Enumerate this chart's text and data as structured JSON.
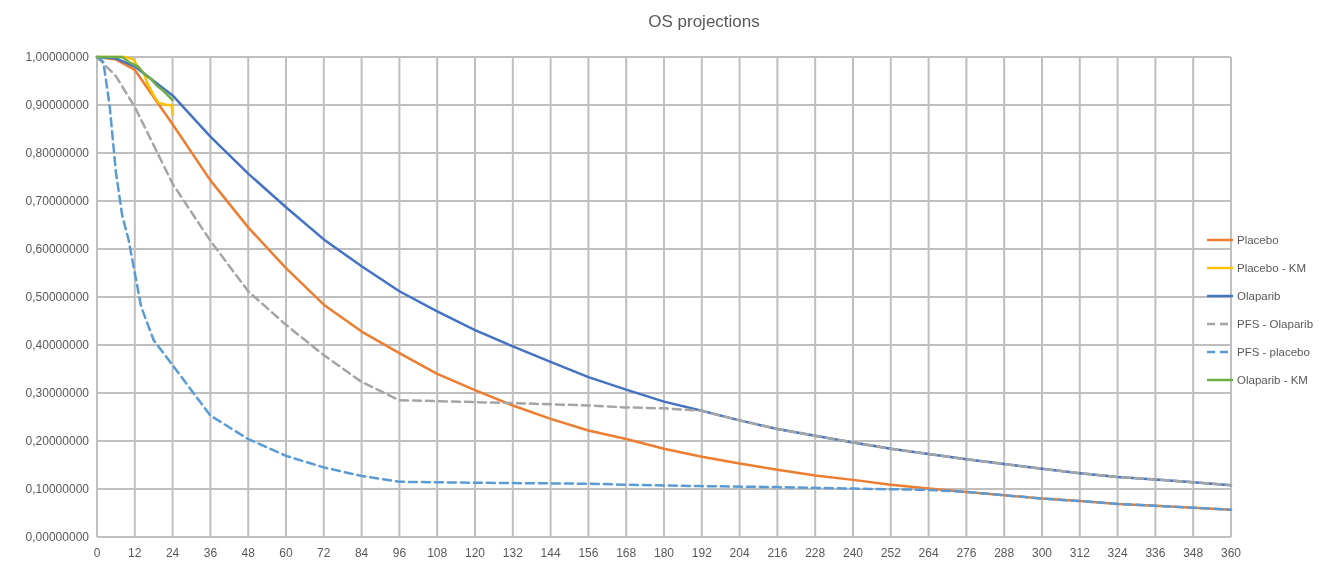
{
  "chart_data": {
    "type": "line",
    "title": "OS projections",
    "xlim": [
      0,
      360
    ],
    "xticks": [
      0,
      12,
      24,
      36,
      48,
      60,
      72,
      84,
      96,
      108,
      120,
      132,
      144,
      156,
      168,
      180,
      192,
      204,
      216,
      228,
      240,
      252,
      264,
      276,
      288,
      300,
      312,
      324,
      336,
      348,
      360
    ],
    "ylim": [
      0,
      1
    ],
    "yticks": [
      {
        "value": 0,
        "label": "0,00000000"
      },
      {
        "value": 0.1,
        "label": "0,10000000"
      },
      {
        "value": 0.2,
        "label": "0,20000000"
      },
      {
        "value": 0.3,
        "label": "0,30000000"
      },
      {
        "value": 0.4,
        "label": "0,40000000"
      },
      {
        "value": 0.5,
        "label": "0,50000000"
      },
      {
        "value": 0.6,
        "label": "0,60000000"
      },
      {
        "value": 0.7,
        "label": "0,70000000"
      },
      {
        "value": 0.8,
        "label": "0,80000000"
      },
      {
        "value": 0.9,
        "label": "0,90000000"
      },
      {
        "value": 1,
        "label": "1,00000000"
      }
    ],
    "grid": true,
    "legend": "right",
    "marker": "none",
    "series": [
      {
        "name": "Placebo",
        "color": "#ed7d31",
        "line_style": "solid",
        "x": [
          0,
          6,
          12,
          24,
          36,
          48,
          60,
          72,
          84,
          96,
          108,
          120,
          132,
          144,
          156,
          168,
          180,
          192,
          204,
          216,
          228,
          240,
          252,
          264,
          276,
          288,
          300,
          312,
          324,
          336,
          348,
          360
        ],
        "values": [
          1,
          0.995,
          0.973,
          0.86,
          0.743,
          0.645,
          0.56,
          0.484,
          0.428,
          0.383,
          0.34,
          0.306,
          0.274,
          0.246,
          0.222,
          0.204,
          0.184,
          0.167,
          0.153,
          0.14,
          0.128,
          0.119,
          0.109,
          0.101,
          0.094,
          0.087,
          0.08,
          0.075,
          0.069,
          0.065,
          0.061,
          0.057
        ]
      },
      {
        "name": "Placebo - KM",
        "color": "#ffc000",
        "line_style": "solid",
        "x": [
          0,
          9,
          11.5,
          13,
          15,
          16,
          18,
          19.5,
          22,
          23.7,
          24
        ],
        "values": [
          1,
          1,
          0.995,
          0.98,
          0.965,
          0.945,
          0.92,
          0.905,
          0.9,
          0.9,
          0.88
        ]
      },
      {
        "name": "Olaparib",
        "color": "#4472c4",
        "line_style": "solid",
        "x": [
          0,
          6,
          12,
          24,
          36,
          48,
          60,
          72,
          84,
          96,
          108,
          120,
          132,
          144,
          156,
          168,
          180,
          192,
          204,
          216,
          228,
          240,
          252,
          264,
          276,
          288,
          300,
          312,
          324,
          336,
          348,
          360
        ],
        "values": [
          1,
          0.997,
          0.98,
          0.92,
          0.834,
          0.757,
          0.687,
          0.62,
          0.564,
          0.512,
          0.47,
          0.431,
          0.397,
          0.365,
          0.333,
          0.307,
          0.282,
          0.263,
          0.243,
          0.225,
          0.211,
          0.197,
          0.184,
          0.173,
          0.162,
          0.152,
          0.142,
          0.133,
          0.125,
          0.12,
          0.114,
          0.108
        ]
      },
      {
        "name": "PFS - Olaparib",
        "color": "#a5a5a5",
        "line_style": "dashed",
        "x": [
          0,
          6,
          12,
          24,
          36,
          48,
          60,
          72,
          84,
          96,
          108,
          132,
          156,
          168,
          180,
          192,
          204,
          216,
          228,
          240,
          252,
          264,
          276,
          288,
          300,
          312,
          324,
          336,
          348,
          360
        ],
        "values": [
          1,
          0.96,
          0.896,
          0.736,
          0.617,
          0.512,
          0.442,
          0.379,
          0.323,
          0.285,
          0.283,
          0.279,
          0.274,
          0.27,
          0.268,
          0.263,
          0.243,
          0.225,
          0.211,
          0.197,
          0.184,
          0.173,
          0.162,
          0.152,
          0.142,
          0.133,
          0.125,
          0.12,
          0.114,
          0.108
        ]
      },
      {
        "name": "PFS - placebo",
        "color": "#5b9bd5",
        "line_style": "dashed",
        "x": [
          0,
          2,
          4,
          6,
          8,
          10,
          12,
          14,
          18,
          24,
          36,
          48,
          60,
          72,
          84,
          96,
          120,
          156,
          168,
          192,
          216,
          240,
          264,
          276,
          288,
          300,
          312,
          324,
          336,
          348,
          360
        ],
        "values": [
          1,
          0.99,
          0.9,
          0.76,
          0.67,
          0.62,
          0.55,
          0.48,
          0.41,
          0.358,
          0.253,
          0.204,
          0.169,
          0.145,
          0.127,
          0.115,
          0.113,
          0.111,
          0.109,
          0.106,
          0.104,
          0.101,
          0.098,
          0.094,
          0.087,
          0.08,
          0.075,
          0.069,
          0.065,
          0.061,
          0.057
        ]
      },
      {
        "name": "Olaparib - KM",
        "color": "#70ad47",
        "line_style": "solid",
        "x": [
          0,
          8,
          10,
          13,
          15,
          17,
          19,
          21,
          24
        ],
        "values": [
          1,
          1,
          0.99,
          0.98,
          0.965,
          0.955,
          0.94,
          0.93,
          0.91
        ]
      }
    ]
  }
}
